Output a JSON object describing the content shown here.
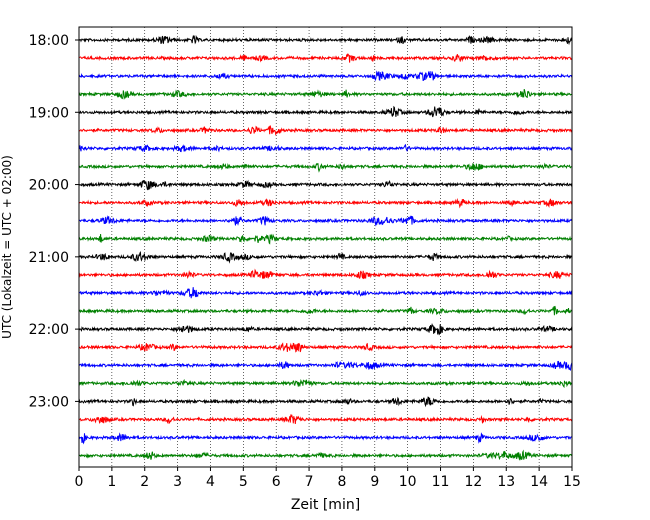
{
  "chart_data": {
    "type": "line",
    "title": "",
    "xlabel": "Zeit  [min]",
    "ylabel": "UTC (Lokalzeit = UTC + 02:00)",
    "xlim": [
      0,
      15
    ],
    "x_ticks": [
      "0",
      "1",
      "2",
      "3",
      "4",
      "5",
      "6",
      "7",
      "8",
      "9",
      "10",
      "11",
      "12",
      "13",
      "14",
      "15"
    ],
    "y_ticks": [
      "18:00",
      "19:00",
      "20:00",
      "21:00",
      "22:00",
      "23:00"
    ],
    "grid": "vertical dotted",
    "trace_interval_minutes": 15,
    "trace_start": "18:00",
    "trace_count": 24,
    "trace_colors": [
      "#000000",
      "#ff0000",
      "#0000ff",
      "#008000"
    ],
    "series": [
      {
        "start": "18:00",
        "color": "#000000"
      },
      {
        "start": "18:15",
        "color": "#ff0000"
      },
      {
        "start": "18:30",
        "color": "#0000ff"
      },
      {
        "start": "18:45",
        "color": "#008000"
      },
      {
        "start": "19:00",
        "color": "#000000"
      },
      {
        "start": "19:15",
        "color": "#ff0000"
      },
      {
        "start": "19:30",
        "color": "#0000ff"
      },
      {
        "start": "19:45",
        "color": "#008000"
      },
      {
        "start": "20:00",
        "color": "#000000"
      },
      {
        "start": "20:15",
        "color": "#ff0000"
      },
      {
        "start": "20:30",
        "color": "#0000ff"
      },
      {
        "start": "20:45",
        "color": "#008000"
      },
      {
        "start": "21:00",
        "color": "#000000"
      },
      {
        "start": "21:15",
        "color": "#ff0000"
      },
      {
        "start": "21:30",
        "color": "#0000ff"
      },
      {
        "start": "21:45",
        "color": "#008000"
      },
      {
        "start": "22:00",
        "color": "#000000"
      },
      {
        "start": "22:15",
        "color": "#ff0000"
      },
      {
        "start": "22:30",
        "color": "#0000ff"
      },
      {
        "start": "22:45",
        "color": "#008000"
      },
      {
        "start": "23:00",
        "color": "#000000"
      },
      {
        "start": "23:15",
        "color": "#ff0000"
      },
      {
        "start": "23:30",
        "color": "#0000ff"
      },
      {
        "start": "23:45",
        "color": "#008000"
      }
    ]
  }
}
